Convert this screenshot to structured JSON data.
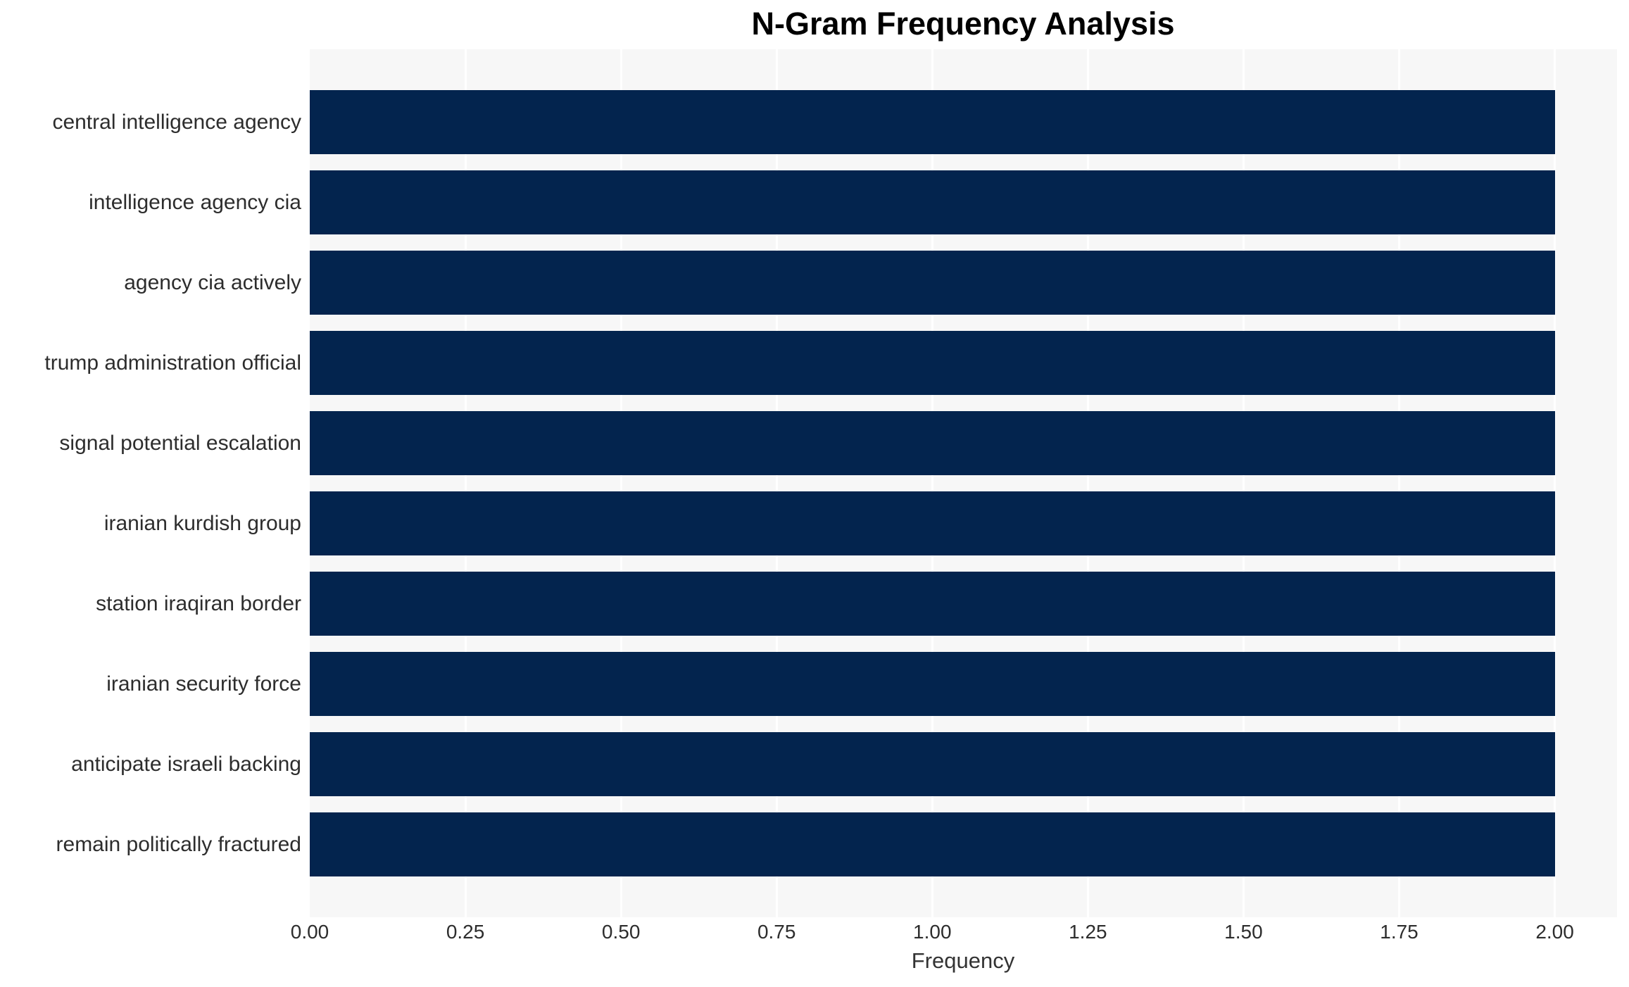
{
  "title": "N-Gram Frequency Analysis",
  "chart_data": {
    "type": "bar",
    "orientation": "horizontal",
    "title": "N-Gram Frequency Analysis",
    "categories": [
      "central intelligence agency",
      "intelligence agency cia",
      "agency cia actively",
      "trump administration official",
      "signal potential escalation",
      "iranian kurdish group",
      "station iraqiran border",
      "iranian security force",
      "anticipate israeli backing",
      "remain politically fractured"
    ],
    "values": [
      2,
      2,
      2,
      2,
      2,
      2,
      2,
      2,
      2,
      2
    ],
    "xlabel": "Frequency",
    "ylabel": "",
    "xlim": [
      0,
      2.1
    ],
    "xtick_values": [
      0,
      0.25,
      0.5,
      0.75,
      1.0,
      1.25,
      1.5,
      1.75,
      2.0
    ],
    "xtick_labels": [
      "0.00",
      "0.25",
      "0.50",
      "0.75",
      "1.00",
      "1.25",
      "1.50",
      "1.75",
      "2.00"
    ],
    "grid": "vertical-white-gridlines-on",
    "legend": "none",
    "colors": {
      "bar": "#03244e",
      "plot_background": "#f7f7f7",
      "gridline": "#ffffff",
      "tick_text": "#2d2d2d",
      "title_text": "#000000",
      "axis_label_text": "#333333",
      "figure_background": "#ffffff"
    }
  }
}
